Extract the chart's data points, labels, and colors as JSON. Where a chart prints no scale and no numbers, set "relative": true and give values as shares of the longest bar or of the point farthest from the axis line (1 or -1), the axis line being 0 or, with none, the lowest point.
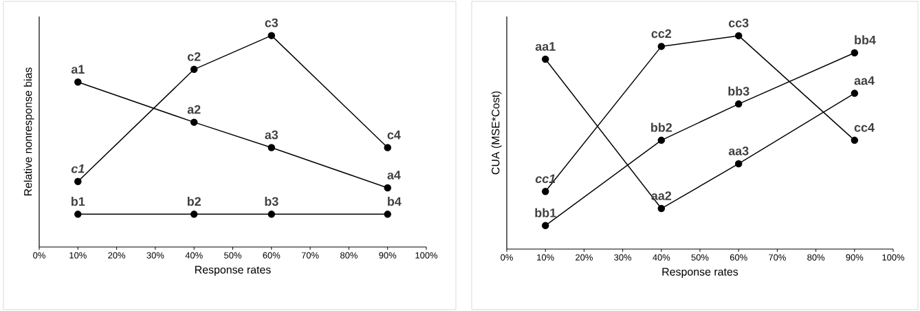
{
  "chart_data": [
    {
      "type": "line",
      "relative": true,
      "xlabel": "Response rates",
      "ylabel": "Relative nonresponse bias",
      "marker": "circle",
      "line_style": "solid",
      "x": [
        10,
        40,
        60,
        90
      ],
      "xlim": [
        0,
        100
      ],
      "xticks": [
        {
          "value": 0,
          "label": "0%"
        },
        {
          "value": 10,
          "label": "10%"
        },
        {
          "value": 20,
          "label": "20%"
        },
        {
          "value": 30,
          "label": "30%"
        },
        {
          "value": 40,
          "label": "40%"
        },
        {
          "value": 50,
          "label": "50%"
        },
        {
          "value": 60,
          "label": "60%"
        },
        {
          "value": 70,
          "label": "70%"
        },
        {
          "value": 80,
          "label": "80%"
        },
        {
          "value": 90,
          "label": "90%"
        },
        {
          "value": 100,
          "label": "100%"
        }
      ],
      "series": [
        {
          "color": "#000000",
          "values": [
            0.78,
            0.59,
            0.47,
            0.28
          ]
        },
        {
          "color": "#000000",
          "values": [
            0.155,
            0.155,
            0.155,
            0.155
          ]
        },
        {
          "color": "#000000",
          "values": [
            0.31,
            0.84,
            1,
            0.47
          ]
        }
      ],
      "annotations": [
        {
          "text": "a1",
          "x": 10,
          "y": 0.78
        },
        {
          "text": "a2",
          "x": 40,
          "y": 0.59
        },
        {
          "text": "a3",
          "x": 60,
          "y": 0.47
        },
        {
          "text": "a4",
          "x": 90,
          "y": 0.28
        },
        {
          "text": "b1",
          "x": 10,
          "y": 0.155
        },
        {
          "text": "b2",
          "x": 40,
          "y": 0.155
        },
        {
          "text": "b3",
          "x": 60,
          "y": 0.155
        },
        {
          "text": "b4",
          "x": 90,
          "y": 0.155
        },
        {
          "text": "*c1*",
          "x": 10,
          "y": 0.31
        },
        {
          "text": "c2",
          "x": 40,
          "y": 0.84
        },
        {
          "text": "c3",
          "x": 60,
          "y": 1
        },
        {
          "text": "c4",
          "x": 90,
          "y": 0.47
        }
      ]
    },
    {
      "type": "line",
      "relative": true,
      "xlabel": "Response rates",
      "ylabel": "CUA (MSE*Cost)",
      "marker": "circle",
      "line_style": "solid",
      "x": [
        10,
        40,
        60,
        90
      ],
      "xlim": [
        0,
        100
      ],
      "xticks": [
        {
          "value": 0,
          "label": "0%"
        },
        {
          "value": 10,
          "label": "10%"
        },
        {
          "value": 20,
          "label": "20%"
        },
        {
          "value": 30,
          "label": "30%"
        },
        {
          "value": 40,
          "label": "40%"
        },
        {
          "value": 50,
          "label": "50%"
        },
        {
          "value": 60,
          "label": "60%"
        },
        {
          "value": 70,
          "label": "70%"
        },
        {
          "value": 80,
          "label": "80%"
        },
        {
          "value": 90,
          "label": "90%"
        },
        {
          "value": 100,
          "label": "100%"
        }
      ],
      "series": [
        {
          "color": "#000000",
          "values": [
            0.89,
            0.19,
            0.4,
            0.73
          ]
        },
        {
          "color": "#000000",
          "values": [
            0.11,
            0.51,
            0.68,
            0.92
          ]
        },
        {
          "color": "#000000",
          "values": [
            0.27,
            0.95,
            1,
            0.51
          ]
        }
      ],
      "annotations": [
        {
          "text": "aa1",
          "x": 10,
          "y": 0.89
        },
        {
          "text": "aa2",
          "x": 40,
          "y": 0.19
        },
        {
          "text": "aa3",
          "x": 60,
          "y": 0.4
        },
        {
          "text": "aa4",
          "x": 90,
          "y": 0.73
        },
        {
          "text": "bb1",
          "x": 10,
          "y": 0.11
        },
        {
          "text": "bb2",
          "x": 40,
          "y": 0.51
        },
        {
          "text": "bb3",
          "x": 60,
          "y": 0.68
        },
        {
          "text": "bb4",
          "x": 90,
          "y": 0.92
        },
        {
          "text": "*cc1*",
          "x": 10,
          "y": 0.27
        },
        {
          "text": "cc2",
          "x": 40,
          "y": 0.95
        },
        {
          "text": "cc3",
          "x": 60,
          "y": 1
        },
        {
          "text": "cc4",
          "x": 90,
          "y": 0.51
        }
      ]
    }
  ]
}
